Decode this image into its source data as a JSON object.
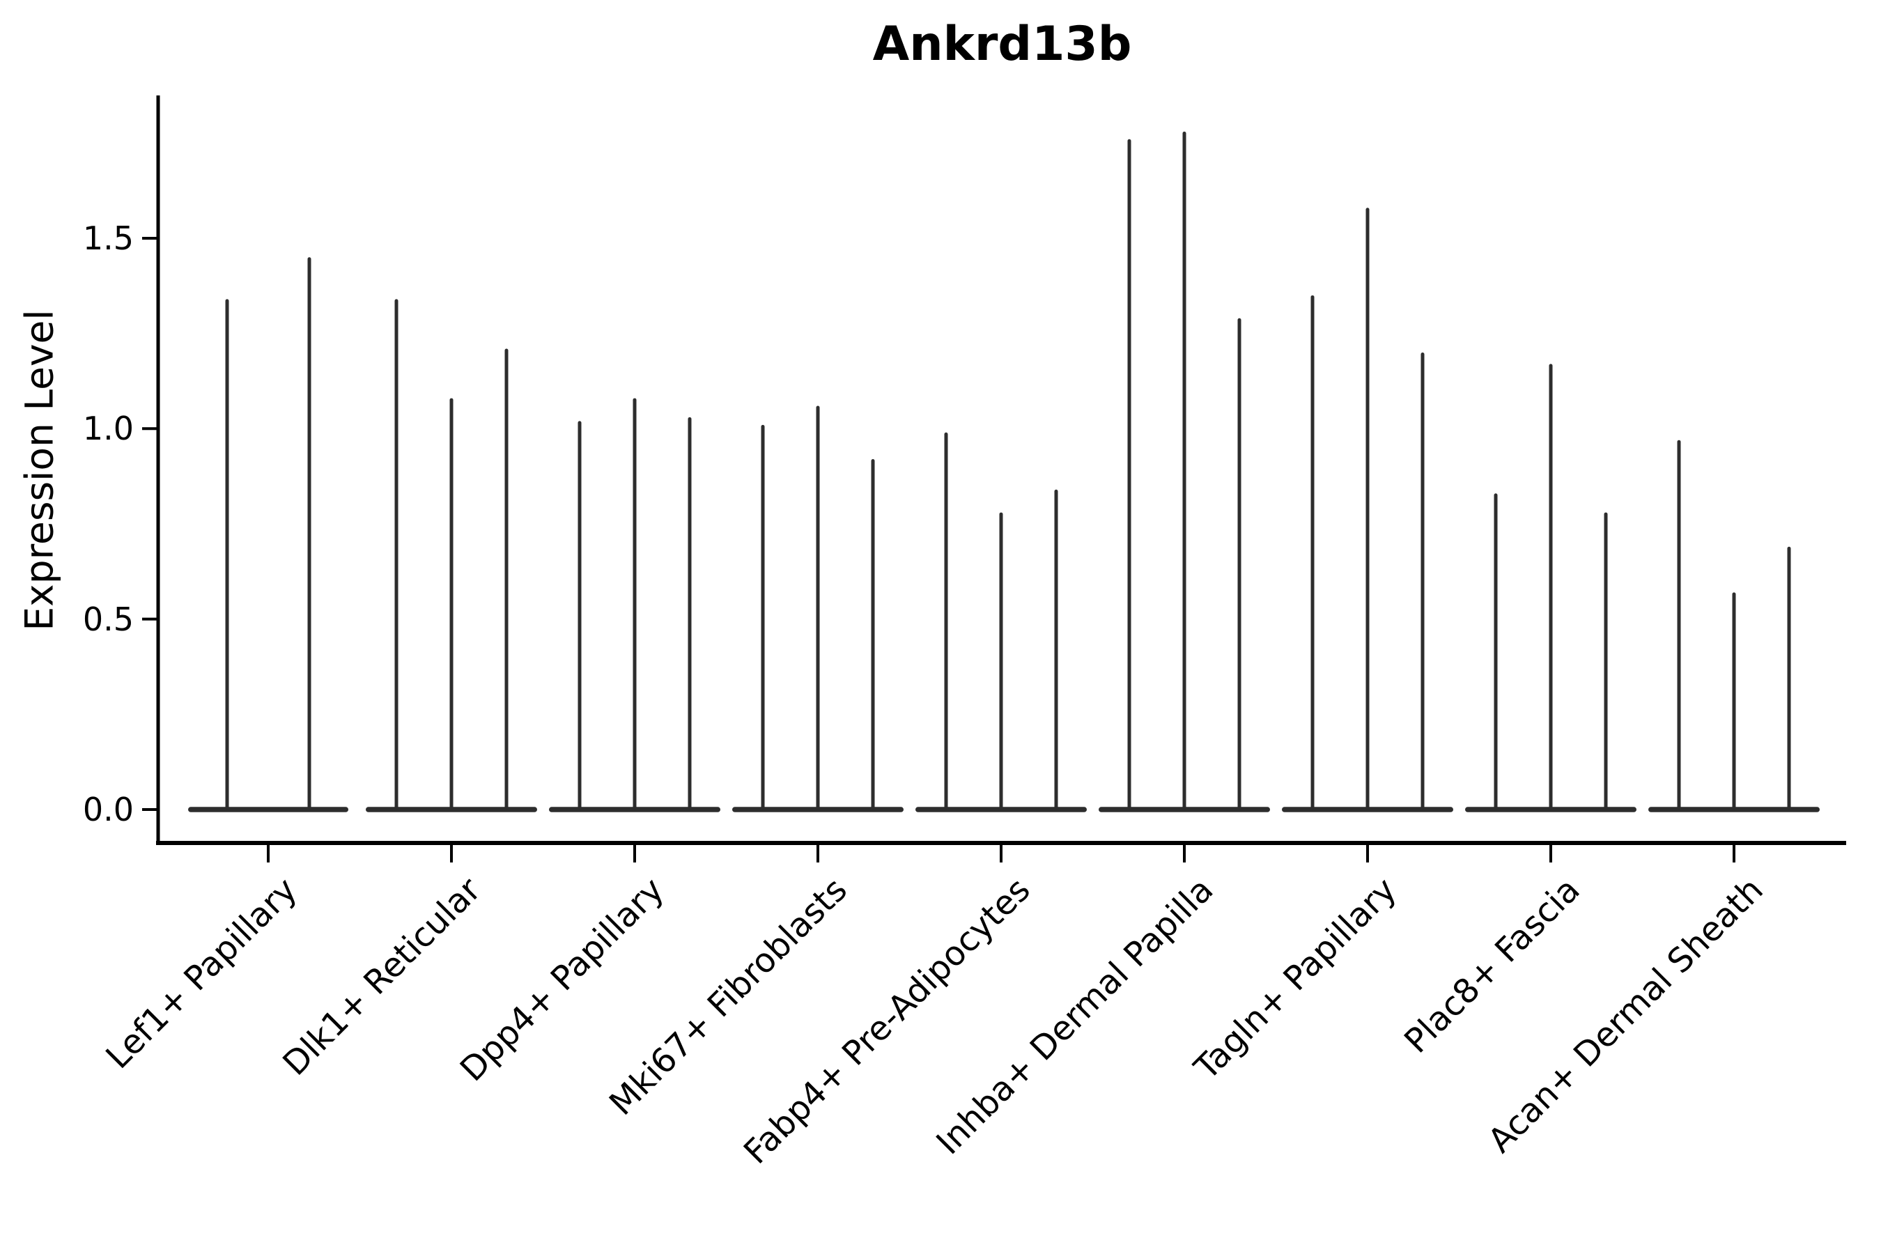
{
  "chart_data": {
    "type": "violin",
    "title": "Ankrd13b",
    "ylabel": "Expression Level",
    "xlabel": "",
    "categories": [
      "Lef1+ Papillary",
      "Dlk1+ Reticular",
      "Dpp4+ Papillary",
      "Mki67+ Fibroblasts",
      "Fabp4+ Pre-Adipocytes",
      "Inhba+ Dermal Papilla",
      "Tagln+ Papillary",
      "Plac8+ Fascia",
      "Acan+ Dermal Sheath"
    ],
    "violins_max_per_category": [
      [
        1.34,
        1.45
      ],
      [
        1.34,
        1.08,
        1.21
      ],
      [
        1.02,
        1.08,
        1.03
      ],
      [
        1.01,
        1.06,
        0.92
      ],
      [
        0.99,
        0.78,
        0.84
      ],
      [
        1.76,
        1.78,
        1.29
      ],
      [
        1.35,
        1.58,
        1.2
      ],
      [
        0.83,
        1.17,
        0.78
      ],
      [
        0.97,
        0.57,
        0.69
      ]
    ],
    "violin_shape_note": "each violin is a wide flat base at 0 with a thin spike up to its max value",
    "baseline_value": 0.0,
    "ytick_labels": [
      "0.0",
      "0.5",
      "1.0",
      "1.5"
    ],
    "ytick_values": [
      0.0,
      0.5,
      1.0,
      1.5
    ],
    "ylim": [
      -0.09,
      1.87
    ],
    "grid": false,
    "legend": false,
    "colors": {
      "violin": "#2d2d2d",
      "axis": "#000000",
      "text": "#000000",
      "background": "#ffffff"
    }
  }
}
